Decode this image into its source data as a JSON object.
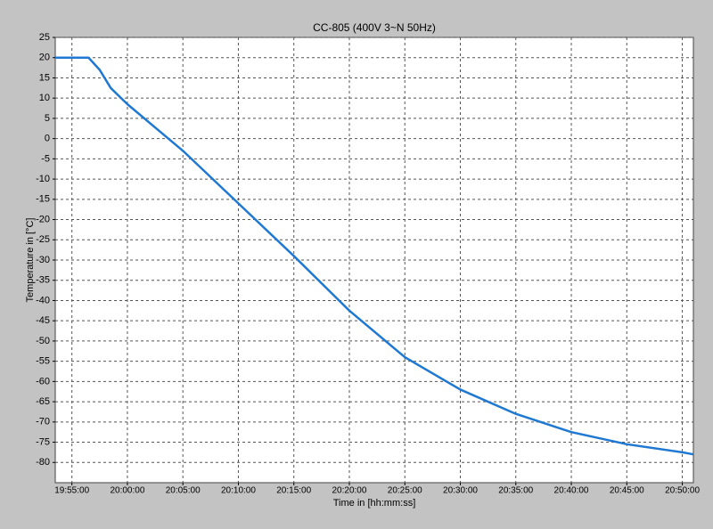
{
  "chart_data": {
    "type": "line",
    "title": "CC-805 (400V 3~N 50Hz)",
    "x_label": "Time in [hh:mm:ss]",
    "y_label": "Temperature in [°C]",
    "x": [
      "19:53:30",
      "19:56:30",
      "19:57:30",
      "19:58:30",
      "20:00:00",
      "20:05:00",
      "20:10:00",
      "20:15:00",
      "20:20:00",
      "20:25:00",
      "20:30:00",
      "20:35:00",
      "20:40:00",
      "20:45:00",
      "20:50:00",
      "20:51:00"
    ],
    "series": [
      {
        "name": "Temperature",
        "color": "#1f78d1",
        "values": [
          20,
          20,
          17,
          12.5,
          8.5,
          -3,
          -16,
          -29,
          -42.5,
          -54,
          -62,
          -68,
          -72.5,
          -75.5,
          -77.5,
          -78
        ]
      }
    ],
    "xlim": [
      "19:53:30",
      "20:51:00"
    ],
    "xticks": [
      "19:55:00",
      "20:00:00",
      "20:05:00",
      "20:10:00",
      "20:15:00",
      "20:20:00",
      "20:25:00",
      "20:30:00",
      "20:35:00",
      "20:40:00",
      "20:45:00",
      "20:50:00"
    ],
    "ylim": [
      -85,
      25
    ],
    "yticks": [
      25,
      20,
      15,
      10,
      5,
      0,
      -5,
      -10,
      -15,
      -20,
      -25,
      -30,
      -35,
      -40,
      -45,
      -50,
      -55,
      -60,
      -65,
      -70,
      -75,
      -80
    ],
    "grid": true
  }
}
